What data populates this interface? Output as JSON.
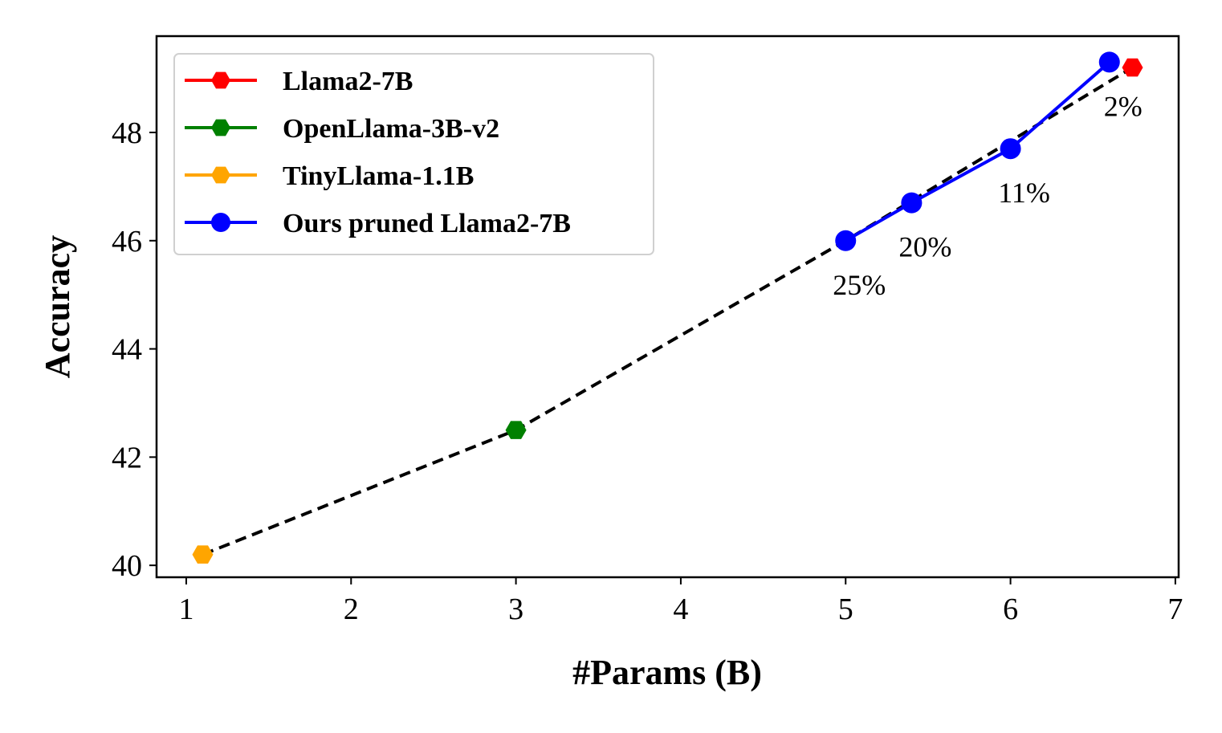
{
  "chart_data": {
    "type": "line",
    "xlabel": "#Params (B)",
    "ylabel": "Accuracy",
    "xlim": [
      0.82,
      7.02
    ],
    "ylim": [
      39.78,
      49.78
    ],
    "xticks": [
      1,
      2,
      3,
      4,
      5,
      6,
      7
    ],
    "xtick_labels": [
      "1",
      "2",
      "3",
      "4",
      "5",
      "6",
      "7"
    ],
    "yticks": [
      40,
      42,
      44,
      46,
      48
    ],
    "ytick_labels": [
      "40",
      "42",
      "44",
      "46",
      "48"
    ],
    "grid": false,
    "legend_position": "top-left",
    "trend_line": {
      "style": "dashed",
      "color": "#000000",
      "x": [
        1.1,
        3.0,
        5.0,
        6.74
      ],
      "y": [
        40.2,
        42.5,
        46.0,
        49.2
      ]
    },
    "series": [
      {
        "name": "Llama2-7B",
        "color": "#ff0000",
        "marker": "hexagon",
        "x": [
          6.74
        ],
        "y": [
          49.2
        ]
      },
      {
        "name": "OpenLlama-3B-v2",
        "color": "#008000",
        "marker": "hexagon",
        "x": [
          3.0
        ],
        "y": [
          42.5
        ]
      },
      {
        "name": "TinyLlama-1.1B",
        "color": "#ffa500",
        "marker": "hexagon",
        "x": [
          1.1
        ],
        "y": [
          40.2
        ]
      },
      {
        "name": "Ours pruned Llama2-7B",
        "color": "#0000ff",
        "marker": "circle",
        "x": [
          5.0,
          5.4,
          6.0,
          6.6
        ],
        "y": [
          46.0,
          46.7,
          47.7,
          49.3
        ]
      }
    ],
    "annotations": [
      {
        "text": "25%",
        "x": 5.0,
        "y": 46.0
      },
      {
        "text": "20%",
        "x": 5.4,
        "y": 46.7
      },
      {
        "text": "11%",
        "x": 6.0,
        "y": 47.7
      },
      {
        "text": "2%",
        "x": 6.6,
        "y": 49.3
      }
    ]
  }
}
